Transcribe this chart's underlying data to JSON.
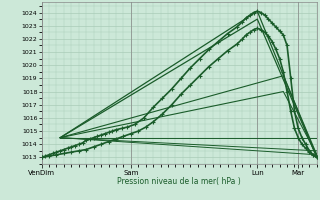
{
  "xlabel": "Pression niveau de la mer( hPa )",
  "bg_color": "#cce8d8",
  "plot_bg_color": "#cce8d8",
  "grid_color": "#aaccb8",
  "line_color": "#1a5c2a",
  "ylim": [
    1012.5,
    1024.8
  ],
  "yticks": [
    1013,
    1014,
    1015,
    1016,
    1017,
    1018,
    1019,
    1020,
    1021,
    1022,
    1023,
    1024
  ],
  "xtick_labels": [
    "VenDim",
    "Sam",
    "Lun",
    "Mar"
  ],
  "xtick_pos": [
    0,
    48,
    116,
    138
  ],
  "total_points": 148,
  "series": [
    {
      "name": "main_curve",
      "x": [
        0,
        2,
        4,
        6,
        8,
        10,
        12,
        14,
        16,
        18,
        20,
        22,
        24,
        26,
        28,
        30,
        32,
        34,
        36,
        38,
        40,
        43,
        46,
        50,
        55,
        60,
        65,
        70,
        75,
        80,
        85,
        90,
        95,
        100,
        105,
        108,
        110,
        112,
        114,
        116,
        118,
        120,
        122,
        124,
        126,
        128,
        130,
        132,
        134,
        136,
        138,
        140,
        142,
        144,
        146,
        148
      ],
      "y": [
        1013.0,
        1013.1,
        1013.2,
        1013.3,
        1013.4,
        1013.5,
        1013.6,
        1013.7,
        1013.8,
        1013.9,
        1014.0,
        1014.1,
        1014.3,
        1014.4,
        1014.5,
        1014.6,
        1014.7,
        1014.8,
        1014.9,
        1015.0,
        1015.1,
        1015.2,
        1015.3,
        1015.5,
        1016.0,
        1016.8,
        1017.5,
        1018.2,
        1019.0,
        1019.8,
        1020.5,
        1021.2,
        1021.8,
        1022.4,
        1022.9,
        1023.3,
        1023.6,
        1023.8,
        1024.0,
        1024.1,
        1024.0,
        1023.8,
        1023.5,
        1023.2,
        1022.9,
        1022.6,
        1022.3,
        1021.5,
        1019.0,
        1016.5,
        1015.2,
        1014.5,
        1014.0,
        1013.5,
        1013.2,
        1013.0
      ],
      "marker": "+",
      "markersize": 2.5,
      "lw": 1.2,
      "zorder": 5
    },
    {
      "name": "fan_line1",
      "x": [
        10,
        116,
        148
      ],
      "y": [
        1014.5,
        1024.1,
        1013.0
      ],
      "marker": null,
      "lw": 0.9,
      "zorder": 3
    },
    {
      "name": "fan_line2",
      "x": [
        10,
        116,
        148
      ],
      "y": [
        1014.5,
        1023.5,
        1013.0
      ],
      "marker": null,
      "lw": 0.9,
      "zorder": 3
    },
    {
      "name": "fan_line3",
      "x": [
        10,
        130,
        148
      ],
      "y": [
        1014.5,
        1019.2,
        1013.2
      ],
      "marker": null,
      "lw": 0.8,
      "zorder": 3
    },
    {
      "name": "fan_line4",
      "x": [
        10,
        130,
        148
      ],
      "y": [
        1014.5,
        1018.0,
        1013.2
      ],
      "marker": null,
      "lw": 0.8,
      "zorder": 3
    },
    {
      "name": "fan_line5",
      "x": [
        10,
        148
      ],
      "y": [
        1014.5,
        1014.5
      ],
      "marker": null,
      "lw": 0.7,
      "zorder": 3
    },
    {
      "name": "fan_line6",
      "x": [
        10,
        148
      ],
      "y": [
        1014.5,
        1013.5
      ],
      "marker": null,
      "lw": 0.7,
      "zorder": 3
    },
    {
      "name": "fan_line7",
      "x": [
        10,
        148
      ],
      "y": [
        1014.5,
        1013.2
      ],
      "marker": null,
      "lw": 0.7,
      "zorder": 3
    },
    {
      "name": "second_curve",
      "x": [
        0,
        4,
        8,
        12,
        16,
        20,
        24,
        28,
        32,
        36,
        40,
        44,
        48,
        52,
        56,
        60,
        65,
        70,
        75,
        80,
        85,
        90,
        95,
        100,
        105,
        108,
        110,
        112,
        114,
        116,
        118,
        120,
        122,
        124,
        126,
        128,
        130,
        132,
        134,
        136,
        138,
        140,
        142,
        144,
        146,
        148
      ],
      "y": [
        1013.0,
        1013.1,
        1013.2,
        1013.3,
        1013.4,
        1013.5,
        1013.6,
        1013.8,
        1014.0,
        1014.2,
        1014.4,
        1014.6,
        1014.8,
        1015.0,
        1015.3,
        1015.7,
        1016.3,
        1017.0,
        1017.8,
        1018.5,
        1019.2,
        1019.9,
        1020.5,
        1021.1,
        1021.6,
        1022.0,
        1022.3,
        1022.5,
        1022.7,
        1022.8,
        1022.7,
        1022.5,
        1022.2,
        1021.8,
        1021.2,
        1020.5,
        1019.5,
        1018.0,
        1016.5,
        1015.2,
        1014.5,
        1014.0,
        1013.7,
        1013.4,
        1013.2,
        1013.0
      ],
      "marker": "+",
      "markersize": 2.5,
      "lw": 1.2,
      "zorder": 4
    }
  ]
}
